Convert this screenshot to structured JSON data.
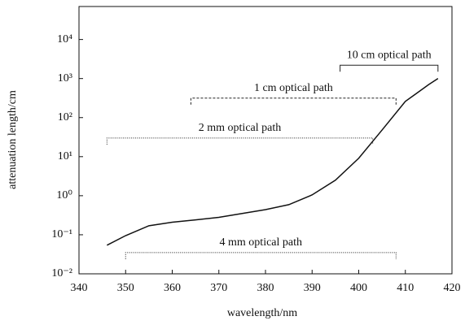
{
  "chart_data": {
    "type": "line",
    "xlabel": "wavelength/nm",
    "ylabel": "attenuation length/cm",
    "x": [
      346,
      350,
      355,
      360,
      365,
      370,
      375,
      380,
      385,
      390,
      395,
      400,
      405,
      410,
      415,
      417
    ],
    "series": [
      {
        "color": "#111111",
        "values": [
          0.054,
          0.095,
          0.17,
          0.21,
          0.24,
          0.28,
          0.35,
          0.44,
          0.59,
          1.05,
          2.5,
          9.1,
          48,
          260,
          700,
          1000
        ]
      }
    ],
    "xlim": [
      340,
      420
    ],
    "xticks": [
      340,
      350,
      360,
      370,
      380,
      390,
      400,
      410,
      420
    ],
    "ylim": [
      0.01,
      70000
    ],
    "ylog": true,
    "yticks": [
      {
        "value": 0.01,
        "label": "10⁻²"
      },
      {
        "value": 0.1,
        "label": "10⁻¹"
      },
      {
        "value": 1,
        "label": "10⁰"
      },
      {
        "value": 10,
        "label": "10¹"
      },
      {
        "value": 100,
        "label": "10²"
      },
      {
        "value": 1000,
        "label": "10³"
      },
      {
        "value": 10000,
        "label": "10⁴"
      }
    ],
    "annotations": [
      {
        "text": "10 cm optical path",
        "x": [
          396,
          417
        ],
        "y": 2200,
        "style": "solid"
      },
      {
        "text": "1 cm optical path",
        "x": [
          364,
          408
        ],
        "y": 316,
        "style": "dashed"
      },
      {
        "text": "2 mm optical path",
        "x": [
          346,
          403
        ],
        "y": 30,
        "style": "dotted"
      },
      {
        "text": "4 mm optical path",
        "x": [
          350,
          408
        ],
        "y": 0.035,
        "style": "dotted"
      }
    ]
  }
}
